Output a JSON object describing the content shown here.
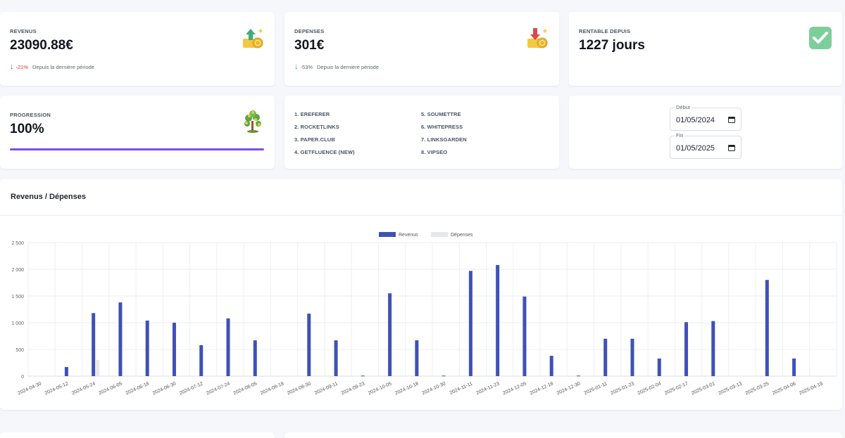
{
  "kpis": {
    "revenus": {
      "label": "REVENUS",
      "value": "23090.88€",
      "delta": "-21%",
      "delta_text": "Depuis la dernière période",
      "icon": "money-up-icon"
    },
    "depenses": {
      "label": "DEPENSES",
      "value": "301€",
      "delta": "-53%",
      "delta_text": "Depuis la dernière période",
      "icon": "money-down-icon"
    },
    "rentable": {
      "label": "RENTABLE DEPUIS",
      "value": "1227 jours",
      "icon": "checkmark-icon"
    },
    "progression": {
      "label": "PROGRESSION",
      "value": "100%",
      "progress": 1.0,
      "icon": "money-tree-icon"
    }
  },
  "partners": [
    "1. EREFERER",
    "5. SOUMETTRE",
    "2. ROCKETLINKS",
    "6. WHITEPRESS",
    "3. PAPER.CLUB",
    "7. LINKSGARDEN",
    "4. GETFLUENCE (NEW)",
    "8. VIPSEO"
  ],
  "dates": {
    "debut": {
      "label": "Début",
      "value": "01/05/2024"
    },
    "fin": {
      "label": "Fin",
      "value": "01/05/2025"
    }
  },
  "chart_section": {
    "title": "Revenus / Dépenses"
  },
  "colors": {
    "revenus": "#3f51b5",
    "depenses": "#e6e8ec",
    "progress": "#7b4fe0"
  },
  "chart_data": {
    "type": "bar",
    "title": "",
    "xlabel": "",
    "ylabel": "",
    "ylim": [
      0,
      2500
    ],
    "yticks": [
      0,
      500,
      1000,
      1500,
      2000,
      2500
    ],
    "ytick_labels": [
      "0",
      "500",
      "1 000",
      "1 500",
      "2 000",
      "2 500"
    ],
    "grid": true,
    "legend": "top-center",
    "categories": [
      "2024-04-30",
      "2024-05-12",
      "2024-05-24",
      "2024-06-05",
      "2024-06-18",
      "2024-06-30",
      "2024-07-12",
      "2024-07-24",
      "2024-08-05",
      "2024-08-18",
      "2024-08-30",
      "2024-09-11",
      "2024-09-23",
      "2024-10-05",
      "2024-10-18",
      "2024-10-30",
      "2024-11-11",
      "2024-11-23",
      "2024-12-05",
      "2024-12-18",
      "2024-12-30",
      "2025-01-11",
      "2025-01-23",
      "2025-02-04",
      "2025-02-17",
      "2025-03-01",
      "2025-03-13",
      "2025-03-25",
      "2025-04-06",
      "2025-04-19"
    ],
    "series": [
      {
        "name": "Revenus",
        "values": [
          0,
          170,
          1180,
          1380,
          1040,
          1000,
          580,
          1080,
          670,
          0,
          1170,
          670,
          10,
          1550,
          670,
          10,
          1970,
          2080,
          1490,
          380,
          10,
          700,
          700,
          330,
          1010,
          1030,
          0,
          1800,
          330,
          0
        ]
      },
      {
        "name": "Dépenses",
        "values": [
          0,
          0,
          300,
          0,
          0,
          0,
          0,
          0,
          0,
          0,
          0,
          0,
          0,
          0,
          0,
          0,
          0,
          0,
          0,
          0,
          0,
          0,
          0,
          0,
          0,
          0,
          0,
          0,
          0,
          0
        ]
      }
    ]
  }
}
